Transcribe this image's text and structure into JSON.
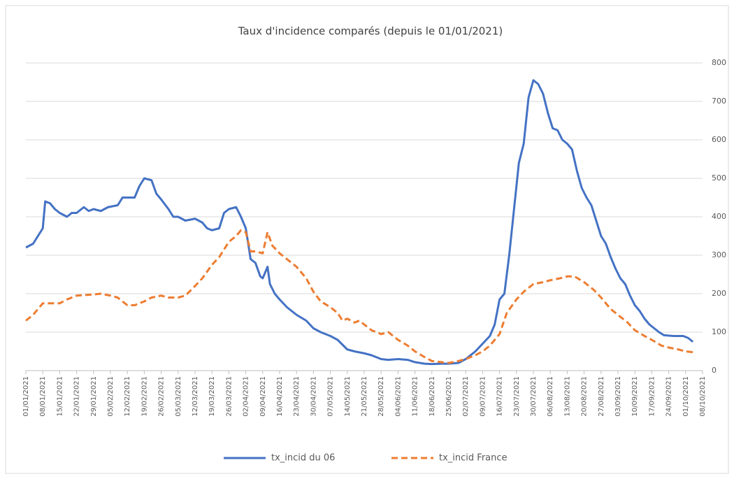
{
  "chart_data": {
    "type": "line",
    "title": "Taux d'incidence comparés (depuis le 01/01/2021)",
    "xlim": [
      "01/01/2021",
      "08/10/2021"
    ],
    "xticks": [
      "01/01/2021",
      "08/01/2021",
      "15/01/2021",
      "22/01/2021",
      "29/01/2021",
      "05/02/2021",
      "12/02/2021",
      "19/02/2021",
      "26/02/2021",
      "05/03/2021",
      "12/03/2021",
      "19/03/2021",
      "26/03/2021",
      "02/04/2021",
      "09/04/2021",
      "16/04/2021",
      "23/04/2021",
      "30/04/2021",
      "07/05/2021",
      "14/05/2021",
      "21/05/2021",
      "28/05/2021",
      "04/06/2021",
      "11/06/2021",
      "18/06/2021",
      "25/06/2021",
      "02/07/2021",
      "09/07/2021",
      "16/07/2021",
      "23/07/2021",
      "30/07/2021",
      "06/08/2021",
      "13/08/2021",
      "20/08/2021",
      "27/08/2021",
      "03/09/2021",
      "10/09/2021",
      "17/09/2021",
      "24/09/2021",
      "01/10/2021",
      "08/10/2021"
    ],
    "ylim": [
      0,
      800
    ],
    "yticks": [
      0,
      100,
      200,
      300,
      400,
      500,
      600,
      700,
      800
    ],
    "grid": true,
    "legend": "bottom",
    "series": [
      {
        "name": "tx_incid du 06",
        "color": "#4472c4",
        "dashed": false,
        "x": [
          "01/01/2021",
          "04/01/2021",
          "06/01/2021",
          "08/01/2021",
          "09/01/2021",
          "11/01/2021",
          "13/01/2021",
          "15/01/2021",
          "18/01/2021",
          "20/01/2021",
          "22/01/2021",
          "25/01/2021",
          "27/01/2021",
          "29/01/2021",
          "01/02/2021",
          "04/02/2021",
          "08/02/2021",
          "10/02/2021",
          "12/02/2021",
          "15/02/2021",
          "17/02/2021",
          "19/02/2021",
          "22/02/2021",
          "24/02/2021",
          "26/02/2021",
          "01/03/2021",
          "03/03/2021",
          "05/03/2021",
          "08/03/2021",
          "12/03/2021",
          "15/03/2021",
          "17/03/2021",
          "19/03/2021",
          "22/03/2021",
          "24/03/2021",
          "26/03/2021",
          "29/03/2021",
          "31/03/2021",
          "02/04/2021",
          "04/04/2021",
          "06/04/2021",
          "08/04/2021",
          "09/04/2021",
          "11/04/2021",
          "12/04/2021",
          "14/04/2021",
          "16/04/2021",
          "19/04/2021",
          "23/04/2021",
          "27/04/2021",
          "30/04/2021",
          "03/05/2021",
          "07/05/2021",
          "10/05/2021",
          "14/05/2021",
          "17/05/2021",
          "21/05/2021",
          "24/05/2021",
          "28/05/2021",
          "31/05/2021",
          "04/06/2021",
          "08/06/2021",
          "11/06/2021",
          "15/06/2021",
          "18/06/2021",
          "22/06/2021",
          "25/06/2021",
          "29/06/2021",
          "02/07/2021",
          "06/07/2021",
          "09/07/2021",
          "12/07/2021",
          "14/07/2021",
          "16/07/2021",
          "18/07/2021",
          "20/07/2021",
          "22/07/2021",
          "24/07/2021",
          "26/07/2021",
          "28/07/2021",
          "30/07/2021",
          "01/08/2021",
          "03/08/2021",
          "05/08/2021",
          "07/08/2021",
          "09/08/2021",
          "11/08/2021",
          "13/08/2021",
          "15/08/2021",
          "17/08/2021",
          "19/08/2021",
          "21/08/2021",
          "23/08/2021",
          "25/08/2021",
          "27/08/2021",
          "29/08/2021",
          "31/08/2021",
          "02/09/2021",
          "04/09/2021",
          "06/09/2021",
          "08/09/2021",
          "10/09/2021",
          "12/09/2021",
          "14/09/2021",
          "16/09/2021",
          "18/09/2021",
          "20/09/2021",
          "22/09/2021",
          "26/09/2021",
          "30/09/2021",
          "02/10/2021",
          "04/10/2021"
        ],
        "values": [
          320,
          330,
          350,
          370,
          440,
          435,
          420,
          410,
          400,
          410,
          410,
          425,
          415,
          420,
          415,
          425,
          430,
          450,
          450,
          450,
          480,
          500,
          495,
          460,
          445,
          420,
          400,
          400,
          390,
          395,
          385,
          370,
          365,
          370,
          410,
          420,
          425,
          400,
          370,
          290,
          280,
          245,
          240,
          270,
          225,
          200,
          185,
          165,
          145,
          130,
          110,
          100,
          90,
          80,
          55,
          50,
          45,
          40,
          30,
          28,
          30,
          28,
          22,
          18,
          17,
          18,
          18,
          20,
          30,
          50,
          70,
          90,
          120,
          185,
          200,
          300,
          420,
          540,
          590,
          710,
          755,
          745,
          720,
          670,
          630,
          625,
          600,
          590,
          575,
          520,
          475,
          450,
          430,
          390,
          350,
          330,
          295,
          265,
          240,
          225,
          195,
          170,
          155,
          135,
          120,
          110,
          100,
          92,
          90,
          90,
          85,
          75
        ]
      },
      {
        "name": "tx_incid France",
        "color": "#ed7d31",
        "dashed": true,
        "x": [
          "01/01/2021",
          "04/01/2021",
          "06/01/2021",
          "08/01/2021",
          "11/01/2021",
          "15/01/2021",
          "18/01/2021",
          "22/01/2021",
          "29/01/2021",
          "01/02/2021",
          "05/02/2021",
          "08/02/2021",
          "12/02/2021",
          "15/02/2021",
          "19/02/2021",
          "22/02/2021",
          "26/02/2021",
          "01/03/2021",
          "05/03/2021",
          "08/03/2021",
          "12/03/2021",
          "15/03/2021",
          "19/03/2021",
          "22/03/2021",
          "26/03/2021",
          "29/03/2021",
          "31/03/2021",
          "02/04/2021",
          "04/04/2021",
          "06/04/2021",
          "09/04/2021",
          "11/04/2021",
          "13/04/2021",
          "16/04/2021",
          "19/04/2021",
          "23/04/2021",
          "27/04/2021",
          "30/04/2021",
          "03/05/2021",
          "07/05/2021",
          "10/05/2021",
          "12/05/2021",
          "14/05/2021",
          "17/05/2021",
          "19/05/2021",
          "21/05/2021",
          "24/05/2021",
          "28/05/2021",
          "31/05/2021",
          "04/06/2021",
          "08/06/2021",
          "11/06/2021",
          "15/06/2021",
          "18/06/2021",
          "22/06/2021",
          "25/06/2021",
          "29/06/2021",
          "02/07/2021",
          "06/07/2021",
          "09/07/2021",
          "12/07/2021",
          "16/07/2021",
          "19/07/2021",
          "23/07/2021",
          "26/07/2021",
          "30/07/2021",
          "03/08/2021",
          "06/08/2021",
          "10/08/2021",
          "13/08/2021",
          "16/08/2021",
          "20/08/2021",
          "24/08/2021",
          "27/08/2021",
          "31/08/2021",
          "03/09/2021",
          "07/09/2021",
          "10/09/2021",
          "14/09/2021",
          "17/09/2021",
          "21/09/2021",
          "24/09/2021",
          "28/09/2021",
          "01/10/2021",
          "04/10/2021"
        ],
        "values": [
          130,
          145,
          160,
          175,
          175,
          175,
          185,
          195,
          198,
          200,
          195,
          190,
          170,
          170,
          180,
          190,
          195,
          190,
          190,
          195,
          220,
          240,
          275,
          295,
          335,
          350,
          365,
          360,
          310,
          310,
          305,
          360,
          325,
          305,
          290,
          270,
          240,
          205,
          180,
          165,
          150,
          130,
          135,
          125,
          130,
          120,
          105,
          95,
          100,
          80,
          65,
          50,
          35,
          25,
          22,
          20,
          25,
          30,
          40,
          50,
          65,
          95,
          150,
          185,
          205,
          225,
          230,
          235,
          240,
          245,
          245,
          230,
          210,
          190,
          160,
          145,
          125,
          105,
          90,
          80,
          65,
          60,
          55,
          50,
          48
        ]
      }
    ]
  }
}
